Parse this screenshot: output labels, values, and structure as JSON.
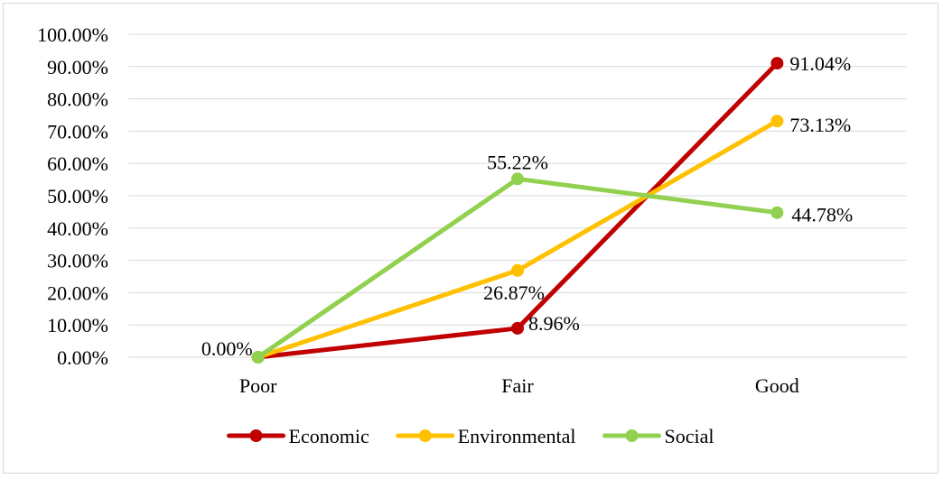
{
  "chart_data": {
    "type": "line",
    "title": "",
    "xlabel": "",
    "ylabel": "",
    "categories": [
      "Poor",
      "Fair",
      "Good"
    ],
    "ylim": [
      0,
      100
    ],
    "y_tick_labels": [
      "0.00%",
      "10.00%",
      "20.00%",
      "30.00%",
      "40.00%",
      "50.00%",
      "60.00%",
      "70.00%",
      "80.00%",
      "90.00%",
      "100.00%"
    ],
    "grid": true,
    "legend_position": "bottom",
    "series": [
      {
        "name": "Economic",
        "color": "#c00000",
        "values": [
          0,
          8.96,
          91.04
        ],
        "labels": [
          "",
          "8.96%",
          "91.04%"
        ]
      },
      {
        "name": "Environmental",
        "color": "#ffc000",
        "values": [
          0,
          26.87,
          73.13
        ],
        "labels": [
          "",
          "26.87%",
          "73.13%"
        ]
      },
      {
        "name": "Social",
        "color": "#92d050",
        "values": [
          0,
          55.22,
          44.78
        ],
        "labels": [
          "0.00%",
          "55.22%",
          "44.78%"
        ]
      }
    ]
  }
}
